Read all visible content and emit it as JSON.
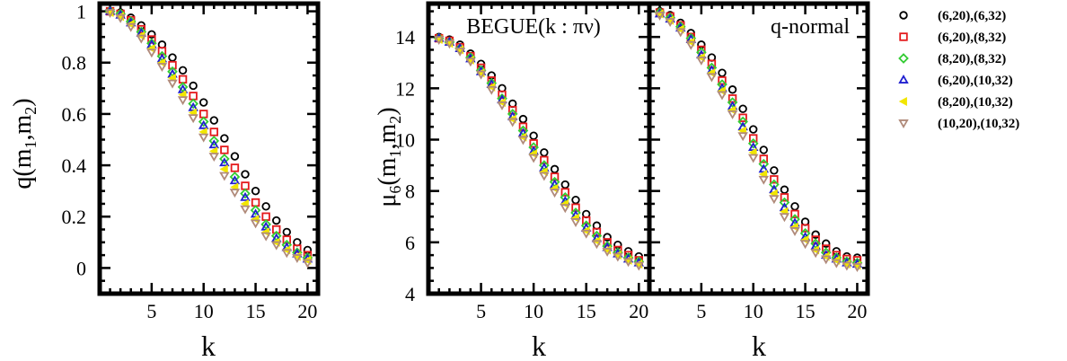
{
  "chart_data": [
    {
      "type": "scatter",
      "title": "",
      "xlabel": "k",
      "ylabel_main": "q(m",
      "ylabel_sub1": "1",
      "ylabel_mid": ",m",
      "ylabel_sub2": "2",
      "ylabel_end": ")",
      "xlim": [
        0,
        21
      ],
      "ylim": [
        -0.1,
        1.03
      ],
      "xticks": [
        5,
        10,
        15,
        20
      ],
      "xtick_labels": [
        "5",
        "10",
        "15",
        "20"
      ],
      "yticks": [
        0,
        0.2,
        0.4,
        0.6,
        0.8,
        1
      ],
      "ytick_labels": [
        "0",
        "0.2",
        "0.4",
        "0.6",
        "0.8",
        "1"
      ],
      "x": [
        1,
        2,
        3,
        4,
        5,
        6,
        7,
        8,
        9,
        10,
        11,
        12,
        13,
        14,
        15,
        16,
        17,
        18,
        19,
        20
      ],
      "series": [
        {
          "name": "(6,20),(6,32)",
          "values": [
            1.0,
            0.995,
            0.975,
            0.945,
            0.91,
            0.87,
            0.82,
            0.77,
            0.71,
            0.645,
            0.575,
            0.505,
            0.435,
            0.365,
            0.3,
            0.24,
            0.185,
            0.14,
            0.1,
            0.07
          ]
        },
        {
          "name": "(6,20),(8,32)",
          "values": [
            1.0,
            0.99,
            0.965,
            0.93,
            0.89,
            0.845,
            0.79,
            0.735,
            0.67,
            0.6,
            0.53,
            0.46,
            0.39,
            0.32,
            0.255,
            0.2,
            0.15,
            0.11,
            0.075,
            0.05
          ]
        },
        {
          "name": "(8,20),(8,32)",
          "values": [
            1.0,
            0.99,
            0.96,
            0.92,
            0.875,
            0.825,
            0.765,
            0.705,
            0.64,
            0.57,
            0.495,
            0.425,
            0.355,
            0.29,
            0.225,
            0.17,
            0.125,
            0.09,
            0.06,
            0.04
          ]
        },
        {
          "name": "(6,20),(10,32)",
          "values": [
            1.0,
            0.985,
            0.955,
            0.915,
            0.87,
            0.815,
            0.755,
            0.695,
            0.625,
            0.555,
            0.48,
            0.41,
            0.34,
            0.275,
            0.21,
            0.16,
            0.115,
            0.08,
            0.055,
            0.035
          ]
        },
        {
          "name": "(8,20),(10,32)",
          "values": [
            0.995,
            0.98,
            0.95,
            0.905,
            0.855,
            0.8,
            0.74,
            0.675,
            0.605,
            0.53,
            0.455,
            0.385,
            0.315,
            0.25,
            0.19,
            0.14,
            0.1,
            0.07,
            0.045,
            0.03
          ]
        },
        {
          "name": "(10,20),(10,32)",
          "values": [
            0.995,
            0.975,
            0.94,
            0.895,
            0.84,
            0.785,
            0.72,
            0.655,
            0.585,
            0.51,
            0.435,
            0.36,
            0.295,
            0.23,
            0.175,
            0.125,
            0.09,
            0.06,
            0.04,
            0.02
          ]
        }
      ]
    },
    {
      "type": "scatter",
      "title": "BEGUE(k : πν)",
      "xlabel": "k",
      "ylabel_main": "μ",
      "ylabel_sub0": "6",
      "ylabel_mid0": "(m",
      "ylabel_sub1": "1",
      "ylabel_mid": ",m",
      "ylabel_sub2": "2",
      "ylabel_end": ")",
      "xlim": [
        0,
        21
      ],
      "ylim": [
        4,
        15.3
      ],
      "xticks": [
        5,
        10,
        15,
        20
      ],
      "xtick_labels": [
        "5",
        "10",
        "15",
        "20"
      ],
      "yticks": [
        4,
        6,
        8,
        10,
        12,
        14
      ],
      "ytick_labels": [
        "4",
        "6",
        "8",
        "10",
        "12",
        "14"
      ],
      "x": [
        1,
        2,
        3,
        4,
        5,
        6,
        7,
        8,
        9,
        10,
        11,
        12,
        13,
        14,
        15,
        16,
        17,
        18,
        19,
        20
      ],
      "series": [
        {
          "name": "(6,20),(6,32)",
          "values": [
            14.0,
            13.9,
            13.7,
            13.35,
            12.95,
            12.5,
            12.0,
            11.4,
            10.8,
            10.15,
            9.5,
            8.85,
            8.25,
            7.65,
            7.1,
            6.65,
            6.2,
            5.9,
            5.65,
            5.45
          ]
        },
        {
          "name": "(6,20),(8,32)",
          "values": [
            13.95,
            13.85,
            13.6,
            13.25,
            12.8,
            12.3,
            11.75,
            11.15,
            10.5,
            9.85,
            9.2,
            8.55,
            7.95,
            7.35,
            6.85,
            6.4,
            6.0,
            5.7,
            5.5,
            5.3
          ]
        },
        {
          "name": "(8,20),(8,32)",
          "values": [
            13.95,
            13.8,
            13.55,
            13.2,
            12.7,
            12.2,
            11.6,
            11.0,
            10.35,
            9.7,
            9.0,
            8.35,
            7.75,
            7.15,
            6.65,
            6.25,
            5.85,
            5.6,
            5.4,
            5.25
          ]
        },
        {
          "name": "(6,20),(10,32)",
          "values": [
            13.95,
            13.8,
            13.55,
            13.15,
            12.65,
            12.15,
            11.55,
            10.9,
            10.25,
            9.55,
            8.9,
            8.25,
            7.6,
            7.05,
            6.55,
            6.15,
            5.8,
            5.55,
            5.35,
            5.2
          ]
        },
        {
          "name": "(8,20),(10,32)",
          "values": [
            13.9,
            13.75,
            13.5,
            13.1,
            12.6,
            12.05,
            11.45,
            10.8,
            10.1,
            9.45,
            8.75,
            8.1,
            7.5,
            6.95,
            6.45,
            6.05,
            5.7,
            5.5,
            5.3,
            5.15
          ]
        },
        {
          "name": "(10,20),(10,32)",
          "values": [
            13.9,
            13.75,
            13.45,
            13.05,
            12.55,
            11.95,
            11.35,
            10.7,
            10.0,
            9.3,
            8.6,
            7.95,
            7.35,
            6.8,
            6.35,
            5.95,
            5.65,
            5.45,
            5.25,
            5.1
          ]
        }
      ]
    },
    {
      "type": "scatter",
      "title": "q-normal",
      "xlabel": "k",
      "xlim": [
        0,
        21
      ],
      "ylim": [
        4,
        15.3
      ],
      "xticks": [
        5,
        10,
        15,
        20
      ],
      "xtick_labels": [
        "5",
        "10",
        "15",
        "20"
      ],
      "yticks": [
        4,
        6,
        8,
        10,
        12,
        14
      ],
      "x": [
        1,
        2,
        3,
        4,
        5,
        6,
        7,
        8,
        9,
        10,
        11,
        12,
        13,
        14,
        15,
        16,
        17,
        18,
        19,
        20
      ],
      "series": [
        {
          "name": "(6,20),(6,32)",
          "values": [
            15.0,
            14.85,
            14.55,
            14.15,
            13.7,
            13.2,
            12.6,
            11.95,
            11.2,
            10.4,
            9.6,
            8.8,
            8.05,
            7.4,
            6.8,
            6.3,
            5.95,
            5.65,
            5.45,
            5.4
          ]
        },
        {
          "name": "(6,20),(8,32)",
          "values": [
            14.95,
            14.8,
            14.45,
            14.0,
            13.5,
            12.95,
            12.3,
            11.6,
            10.85,
            10.05,
            9.25,
            8.45,
            7.75,
            7.1,
            6.55,
            6.1,
            5.75,
            5.5,
            5.35,
            5.3
          ]
        },
        {
          "name": "(8,20),(8,32)",
          "values": [
            14.95,
            14.75,
            14.4,
            13.95,
            13.4,
            12.8,
            12.15,
            11.45,
            10.7,
            9.85,
            9.05,
            8.25,
            7.55,
            6.9,
            6.35,
            5.95,
            5.6,
            5.4,
            5.25,
            5.2
          ]
        },
        {
          "name": "(6,20),(10,32)",
          "values": [
            14.9,
            14.7,
            14.35,
            13.9,
            13.3,
            12.7,
            12.0,
            11.3,
            10.5,
            9.7,
            8.85,
            8.05,
            7.35,
            6.75,
            6.2,
            5.85,
            5.5,
            5.35,
            5.2,
            5.15
          ]
        },
        {
          "name": "(8,20),(10,32)",
          "values": [
            14.9,
            14.65,
            14.3,
            13.8,
            13.2,
            12.6,
            11.9,
            11.15,
            10.35,
            9.5,
            8.65,
            7.9,
            7.2,
            6.6,
            6.1,
            5.7,
            5.45,
            5.3,
            5.15,
            5.1
          ]
        },
        {
          "name": "(10,20),(10,32)",
          "values": [
            14.85,
            14.6,
            14.2,
            13.7,
            13.1,
            12.45,
            11.75,
            11.0,
            10.15,
            9.3,
            8.45,
            7.7,
            7.0,
            6.45,
            5.95,
            5.6,
            5.35,
            5.2,
            5.1,
            5.05
          ]
        }
      ]
    }
  ],
  "legend": {
    "placement": "right",
    "items": [
      {
        "label": "(6,20),(6,32)",
        "marker": "circle",
        "color": "#000000"
      },
      {
        "label": "(6,20),(8,32)",
        "marker": "square",
        "color": "#e41a1c"
      },
      {
        "label": "(8,20),(8,32)",
        "marker": "diamond",
        "color": "#33cc33"
      },
      {
        "label": "(6,20),(10,32)",
        "marker": "triangle-up",
        "color": "#1f1fd0"
      },
      {
        "label": "(8,20),(10,32)",
        "marker": "triangle-left",
        "color": "#f2e600"
      },
      {
        "label": "(10,20),(10,32)",
        "marker": "triangle-down",
        "color": "#b08a7a"
      }
    ]
  }
}
